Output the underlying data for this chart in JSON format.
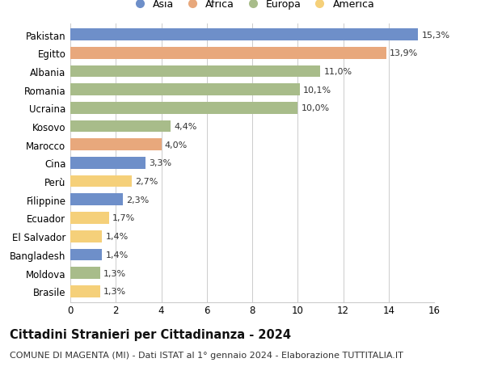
{
  "categories": [
    "Brasile",
    "Moldova",
    "Bangladesh",
    "El Salvador",
    "Ecuador",
    "Filippine",
    "Perù",
    "Cina",
    "Marocco",
    "Kosovo",
    "Ucraina",
    "Romania",
    "Albania",
    "Egitto",
    "Pakistan"
  ],
  "values": [
    1.3,
    1.3,
    1.4,
    1.4,
    1.7,
    2.3,
    2.7,
    3.3,
    4.0,
    4.4,
    10.0,
    10.1,
    11.0,
    13.9,
    15.3
  ],
  "labels": [
    "1,3%",
    "1,3%",
    "1,4%",
    "1,4%",
    "1,7%",
    "2,3%",
    "2,7%",
    "3,3%",
    "4,0%",
    "4,4%",
    "10,0%",
    "10,1%",
    "11,0%",
    "13,9%",
    "15,3%"
  ],
  "continents": [
    "America",
    "Europa",
    "Asia",
    "America",
    "America",
    "Asia",
    "America",
    "Asia",
    "Africa",
    "Europa",
    "Europa",
    "Europa",
    "Europa",
    "Africa",
    "Asia"
  ],
  "colors": {
    "Asia": "#6e8fc9",
    "Africa": "#e8a87c",
    "Europa": "#a8bc8a",
    "America": "#f5d07a"
  },
  "legend_order": [
    "Asia",
    "Africa",
    "Europa",
    "America"
  ],
  "title": "Cittadini Stranieri per Cittadinanza - 2024",
  "subtitle": "COMUNE DI MAGENTA (MI) - Dati ISTAT al 1° gennaio 2024 - Elaborazione TUTTITALIA.IT",
  "xlim": [
    0,
    16
  ],
  "xticks": [
    0,
    2,
    4,
    6,
    8,
    10,
    12,
    14,
    16
  ],
  "background_color": "#ffffff",
  "grid_color": "#cccccc",
  "bar_height": 0.65,
  "title_fontsize": 10.5,
  "subtitle_fontsize": 8.0,
  "label_fontsize": 8.0,
  "tick_fontsize": 8.5,
  "legend_fontsize": 9.0
}
